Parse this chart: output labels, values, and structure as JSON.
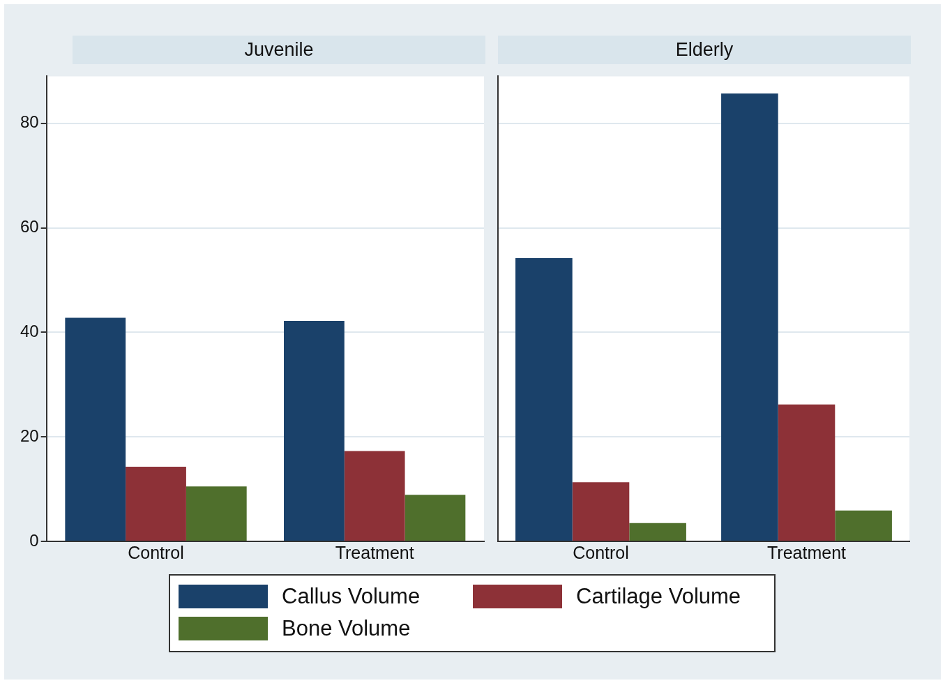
{
  "chart_data": [
    {
      "type": "bar",
      "title": "Juvenile",
      "categories": [
        "Control",
        "Treatment"
      ],
      "series": [
        {
          "name": "Callus Volume",
          "color": "#1a416a",
          "values": [
            42.8,
            42.2
          ]
        },
        {
          "name": "Cartilage Volume",
          "color": "#8d3137",
          "values": [
            14.3,
            17.3
          ]
        },
        {
          "name": "Bone Volume",
          "color": "#4f6f2c",
          "values": [
            10.5,
            8.9
          ]
        }
      ],
      "ylim": [
        0,
        89
      ],
      "yticks": [
        0,
        20,
        40,
        60,
        80
      ],
      "grid": "y",
      "legend": "bottom"
    },
    {
      "type": "bar",
      "title": "Elderly",
      "categories": [
        "Control",
        "Treatment"
      ],
      "series": [
        {
          "color": "#1a416a",
          "values": [
            54.2,
            85.7
          ]
        },
        {
          "color": "#8d3137",
          "values": [
            11.3,
            26.2
          ]
        },
        {
          "color": "#4f6f2c",
          "values": [
            3.5,
            5.9
          ]
        }
      ],
      "ylim": [
        0,
        89
      ],
      "yticks": [
        0,
        20,
        40,
        60,
        80
      ],
      "grid": "y",
      "tick_labels": "x"
    }
  ]
}
